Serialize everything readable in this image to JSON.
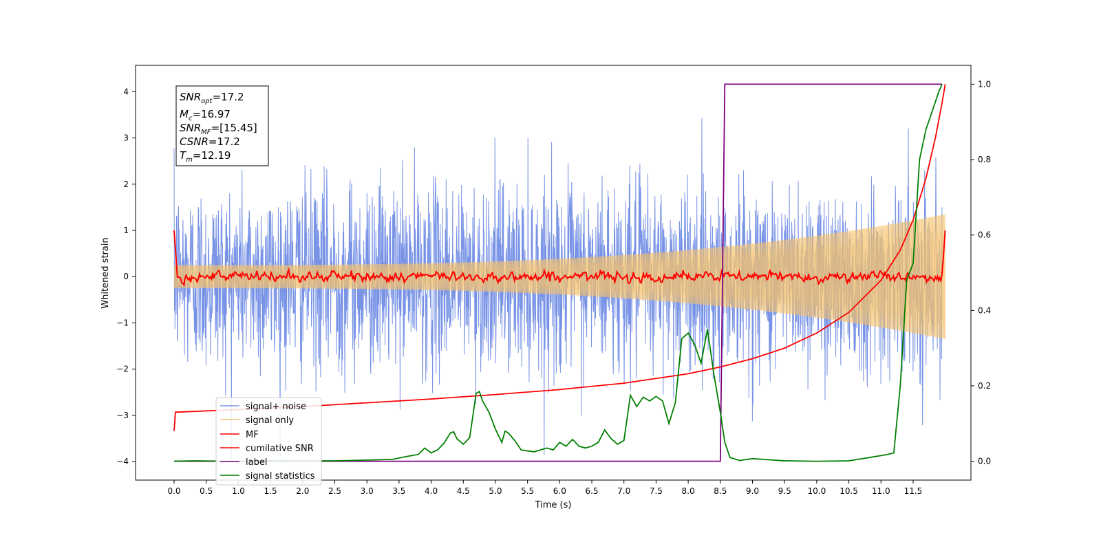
{
  "chart_data": {
    "type": "line",
    "xlabel": "Time (s)",
    "ylabel": "Whitened strain",
    "xlim": [
      -0.6,
      12.4
    ],
    "ylim": [
      -4.4,
      4.57
    ],
    "y2lim": [
      -0.05,
      1.05
    ],
    "x_ticks": [
      "0.0",
      "0.5",
      "1.0",
      "1.5",
      "2.0",
      "2.5",
      "3.0",
      "3.5",
      "4.0",
      "4.5",
      "5.0",
      "5.5",
      "6.0",
      "6.5",
      "7.0",
      "7.5",
      "8.0",
      "8.5",
      "9.0",
      "9.5",
      "10.0",
      "10.5",
      "11.0",
      "11.5"
    ],
    "y_ticks": [
      "4",
      "3",
      "2",
      "1",
      "0",
      "−1",
      "−2",
      "−3",
      "−4"
    ],
    "y2_ticks": [
      "1.0",
      "0.8",
      "0.6",
      "0.4",
      "0.2",
      "0.0"
    ],
    "info_box": {
      "line1": {
        "sym": "SNR",
        "sub": "opt",
        "val": "=17.2"
      },
      "line2": {
        "sym": "M",
        "sub": "c",
        "val": "=16.97"
      },
      "line3": {
        "sym": "SNR",
        "sub": "MF",
        "val": "=[15.45]"
      },
      "line4": {
        "sym": "CSNR",
        "sub": "",
        "val": "=17.2"
      },
      "line5": {
        "sym": "T",
        "sub": "m",
        "val": "=12.19"
      }
    },
    "legend_position": "lower-left",
    "series": [
      {
        "name": "signal+ noise",
        "color": "#7893e6",
        "axis": "left",
        "noise_std": 1.0,
        "t_range": [
          0,
          11.95
        ]
      },
      {
        "name": "signal only",
        "color": "#f5c26b",
        "axis": "left",
        "amplitude_start": 0.25,
        "amplitude_end": 1.35,
        "t_range": [
          0,
          12.0
        ]
      },
      {
        "name": "MF",
        "color": "#ff0000",
        "axis": "left",
        "t_range": [
          0,
          12.0
        ]
      },
      {
        "name": "cumilative SNR",
        "color": "#ff0000",
        "axis": "right",
        "points": [
          [
            0,
            0.08
          ],
          [
            0.02,
            0.13
          ],
          [
            1,
            0.137
          ],
          [
            2,
            0.145
          ],
          [
            3,
            0.155
          ],
          [
            4,
            0.165
          ],
          [
            5,
            0.177
          ],
          [
            6,
            0.19
          ],
          [
            7,
            0.207
          ],
          [
            8,
            0.232
          ],
          [
            8.5,
            0.25
          ],
          [
            9,
            0.272
          ],
          [
            9.5,
            0.3
          ],
          [
            10,
            0.34
          ],
          [
            10.5,
            0.395
          ],
          [
            11,
            0.48
          ],
          [
            11.3,
            0.56
          ],
          [
            11.5,
            0.64
          ],
          [
            11.7,
            0.75
          ],
          [
            11.85,
            0.86
          ],
          [
            11.95,
            0.95
          ],
          [
            12.0,
            1.0
          ]
        ]
      },
      {
        "name": "label",
        "color": "#7f007f",
        "axis": "right",
        "points": [
          [
            0,
            0
          ],
          [
            8.5,
            0
          ],
          [
            8.57,
            1.0
          ],
          [
            11.95,
            1.0
          ]
        ]
      },
      {
        "name": "signal statistics",
        "color": "#007f00",
        "axis": "right",
        "points": [
          [
            0,
            0
          ],
          [
            0.3,
            0.001
          ],
          [
            1,
            0
          ],
          [
            1.5,
            0.001
          ],
          [
            2,
            0.001
          ],
          [
            2.5,
            0.001
          ],
          [
            3,
            0.003
          ],
          [
            3.4,
            0.005
          ],
          [
            3.6,
            0.012
          ],
          [
            3.8,
            0.018
          ],
          [
            3.9,
            0.035
          ],
          [
            4.0,
            0.022
          ],
          [
            4.1,
            0.03
          ],
          [
            4.2,
            0.048
          ],
          [
            4.3,
            0.075
          ],
          [
            4.35,
            0.078
          ],
          [
            4.4,
            0.06
          ],
          [
            4.5,
            0.045
          ],
          [
            4.6,
            0.063
          ],
          [
            4.7,
            0.18
          ],
          [
            4.75,
            0.185
          ],
          [
            4.8,
            0.16
          ],
          [
            4.9,
            0.13
          ],
          [
            5.0,
            0.085
          ],
          [
            5.1,
            0.05
          ],
          [
            5.15,
            0.08
          ],
          [
            5.2,
            0.075
          ],
          [
            5.3,
            0.055
          ],
          [
            5.4,
            0.03
          ],
          [
            5.6,
            0.025
          ],
          [
            5.8,
            0.035
          ],
          [
            5.9,
            0.03
          ],
          [
            6.0,
            0.05
          ],
          [
            6.1,
            0.04
          ],
          [
            6.2,
            0.058
          ],
          [
            6.3,
            0.04
          ],
          [
            6.4,
            0.035
          ],
          [
            6.5,
            0.04
          ],
          [
            6.6,
            0.05
          ],
          [
            6.7,
            0.083
          ],
          [
            6.8,
            0.06
          ],
          [
            6.9,
            0.045
          ],
          [
            7.0,
            0.055
          ],
          [
            7.1,
            0.175
          ],
          [
            7.2,
            0.145
          ],
          [
            7.3,
            0.17
          ],
          [
            7.4,
            0.16
          ],
          [
            7.5,
            0.172
          ],
          [
            7.6,
            0.16
          ],
          [
            7.7,
            0.1
          ],
          [
            7.8,
            0.155
          ],
          [
            7.9,
            0.325
          ],
          [
            8.0,
            0.34
          ],
          [
            8.1,
            0.31
          ],
          [
            8.2,
            0.26
          ],
          [
            8.3,
            0.35
          ],
          [
            8.4,
            0.23
          ],
          [
            8.5,
            0.13
          ],
          [
            8.57,
            0.05
          ],
          [
            8.65,
            0.01
          ],
          [
            8.8,
            0.002
          ],
          [
            9.0,
            0.007
          ],
          [
            9.5,
            0.001
          ],
          [
            10,
            0
          ],
          [
            10.5,
            0.001
          ],
          [
            11.0,
            0.015
          ],
          [
            11.1,
            0.018
          ],
          [
            11.2,
            0.022
          ],
          [
            11.3,
            0.2
          ],
          [
            11.4,
            0.48
          ],
          [
            11.5,
            0.525
          ],
          [
            11.6,
            0.8
          ],
          [
            11.7,
            0.88
          ],
          [
            11.8,
            0.93
          ],
          [
            11.9,
            0.98
          ],
          [
            11.95,
            1.0
          ]
        ]
      }
    ]
  }
}
